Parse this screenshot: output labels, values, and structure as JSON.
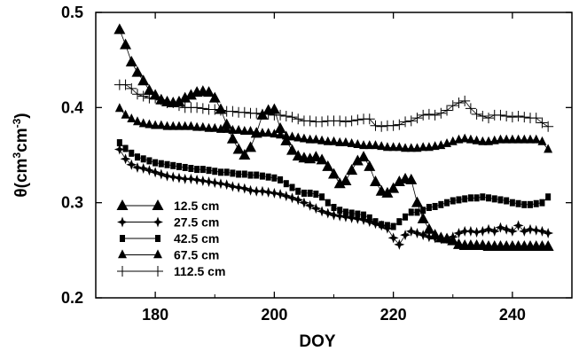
{
  "chart_data": {
    "type": "line",
    "xlabel": "DOY",
    "ylabel_main": "θ(cm",
    "ylabel_sup1": "3",
    "ylabel_mid": "cm",
    "ylabel_sup2": "-3",
    "ylabel_end": ")",
    "xlim": [
      170,
      250
    ],
    "ylim": [
      0.2,
      0.5
    ],
    "xticks": [
      180,
      200,
      220,
      240
    ],
    "xtick_labels": [
      "180",
      "200",
      "220",
      "240"
    ],
    "yticks": [
      0.2,
      0.3,
      0.4,
      0.5
    ],
    "ytick_labels": [
      "0.2",
      "0.3",
      "0.4",
      "0.5"
    ],
    "grid": false,
    "legend_position": "bottom-left",
    "series": [
      {
        "name": "12.5 cm",
        "marker": "triangle-filled",
        "x": [
          174,
          175,
          176,
          177,
          178,
          179,
          180,
          181,
          182,
          183,
          184,
          185,
          186,
          187,
          188,
          189,
          190,
          191,
          192,
          193,
          194,
          195,
          196,
          197,
          198,
          199,
          200,
          201,
          202,
          203,
          204,
          205,
          206,
          207,
          208,
          209,
          210,
          211,
          212,
          213,
          214,
          215,
          216,
          217,
          218,
          219,
          220,
          221,
          222,
          223,
          224,
          225,
          226,
          227,
          228,
          229,
          230,
          231,
          232,
          233,
          234,
          235,
          236,
          237,
          238,
          239,
          240,
          241,
          242,
          243,
          244,
          245,
          246
        ],
        "y": [
          0.482,
          0.466,
          0.448,
          0.437,
          0.428,
          0.418,
          0.413,
          0.408,
          0.406,
          0.405,
          0.406,
          0.41,
          0.413,
          0.416,
          0.417,
          0.416,
          0.41,
          0.398,
          0.382,
          0.367,
          0.356,
          0.35,
          0.358,
          0.373,
          0.392,
          0.397,
          0.398,
          0.378,
          0.365,
          0.355,
          0.349,
          0.347,
          0.346,
          0.348,
          0.345,
          0.338,
          0.33,
          0.32,
          0.323,
          0.334,
          0.344,
          0.348,
          0.338,
          0.322,
          0.312,
          0.31,
          0.315,
          0.322,
          0.325,
          0.324,
          0.3,
          0.283,
          0.272,
          0.266,
          0.263,
          0.262,
          0.26,
          0.256,
          0.255,
          0.255,
          0.255,
          0.255,
          0.254,
          0.254,
          0.254,
          0.254,
          0.254,
          0.254,
          0.254,
          0.254,
          0.254,
          0.254,
          0.254
        ]
      },
      {
        "name": "27.5 cm",
        "marker": "star4",
        "x": [
          174,
          175,
          176,
          177,
          178,
          179,
          180,
          181,
          182,
          183,
          184,
          185,
          186,
          187,
          188,
          189,
          190,
          191,
          192,
          193,
          194,
          195,
          196,
          197,
          198,
          199,
          200,
          201,
          202,
          203,
          204,
          205,
          206,
          207,
          208,
          209,
          210,
          211,
          212,
          213,
          214,
          215,
          216,
          217,
          218,
          219,
          220,
          221,
          222,
          223,
          224,
          225,
          226,
          227,
          228,
          229,
          230,
          231,
          232,
          233,
          234,
          235,
          236,
          237,
          238,
          239,
          240,
          241,
          242,
          243,
          244,
          245,
          246
        ],
        "y": [
          0.356,
          0.346,
          0.34,
          0.337,
          0.336,
          0.334,
          0.332,
          0.33,
          0.328,
          0.327,
          0.326,
          0.325,
          0.325,
          0.324,
          0.323,
          0.322,
          0.321,
          0.32,
          0.319,
          0.317,
          0.316,
          0.315,
          0.313,
          0.312,
          0.312,
          0.311,
          0.31,
          0.309,
          0.307,
          0.305,
          0.303,
          0.3,
          0.297,
          0.294,
          0.291,
          0.289,
          0.287,
          0.286,
          0.285,
          0.284,
          0.283,
          0.282,
          0.28,
          0.278,
          0.276,
          0.273,
          0.263,
          0.256,
          0.266,
          0.27,
          0.268,
          0.266,
          0.264,
          0.263,
          0.262,
          0.262,
          0.264,
          0.268,
          0.27,
          0.27,
          0.269,
          0.27,
          0.272,
          0.27,
          0.274,
          0.272,
          0.27,
          0.276,
          0.27,
          0.272,
          0.271,
          0.27,
          0.268
        ]
      },
      {
        "name": "42.5 cm",
        "marker": "square-filled",
        "x": [
          174,
          175,
          176,
          177,
          178,
          179,
          180,
          181,
          182,
          183,
          184,
          185,
          186,
          187,
          188,
          189,
          190,
          191,
          192,
          193,
          194,
          195,
          196,
          197,
          198,
          199,
          200,
          201,
          202,
          203,
          204,
          205,
          206,
          207,
          208,
          209,
          210,
          211,
          212,
          213,
          214,
          215,
          216,
          217,
          218,
          219,
          220,
          221,
          222,
          223,
          224,
          225,
          226,
          227,
          228,
          229,
          230,
          231,
          232,
          233,
          234,
          235,
          236,
          237,
          238,
          239,
          240,
          241,
          242,
          243,
          244,
          245,
          246
        ],
        "y": [
          0.363,
          0.357,
          0.352,
          0.348,
          0.346,
          0.344,
          0.342,
          0.341,
          0.34,
          0.339,
          0.338,
          0.337,
          0.336,
          0.335,
          0.335,
          0.334,
          0.333,
          0.332,
          0.332,
          0.331,
          0.33,
          0.33,
          0.329,
          0.329,
          0.328,
          0.327,
          0.326,
          0.324,
          0.32,
          0.316,
          0.312,
          0.31,
          0.31,
          0.309,
          0.306,
          0.3,
          0.295,
          0.292,
          0.29,
          0.289,
          0.288,
          0.287,
          0.284,
          0.28,
          0.277,
          0.276,
          0.275,
          0.28,
          0.285,
          0.29,
          0.29,
          0.292,
          0.295,
          0.296,
          0.298,
          0.3,
          0.302,
          0.303,
          0.304,
          0.305,
          0.305,
          0.306,
          0.305,
          0.304,
          0.303,
          0.302,
          0.3,
          0.299,
          0.298,
          0.298,
          0.299,
          0.3,
          0.306
        ]
      },
      {
        "name": "67.5 cm",
        "marker": "triangle-open",
        "x": [
          174,
          175,
          176,
          177,
          178,
          179,
          180,
          181,
          182,
          183,
          184,
          185,
          186,
          187,
          188,
          189,
          190,
          191,
          192,
          193,
          194,
          195,
          196,
          197,
          198,
          199,
          200,
          201,
          202,
          203,
          204,
          205,
          206,
          207,
          208,
          209,
          210,
          211,
          212,
          213,
          214,
          215,
          216,
          217,
          218,
          219,
          220,
          221,
          222,
          223,
          224,
          225,
          226,
          227,
          228,
          229,
          230,
          231,
          232,
          233,
          234,
          235,
          236,
          237,
          238,
          239,
          240,
          241,
          242,
          243,
          244,
          245,
          246
        ],
        "y": [
          0.399,
          0.392,
          0.388,
          0.385,
          0.383,
          0.382,
          0.381,
          0.381,
          0.38,
          0.38,
          0.38,
          0.38,
          0.38,
          0.379,
          0.379,
          0.378,
          0.378,
          0.377,
          0.377,
          0.376,
          0.376,
          0.375,
          0.375,
          0.374,
          0.373,
          0.373,
          0.372,
          0.371,
          0.37,
          0.369,
          0.368,
          0.367,
          0.366,
          0.366,
          0.365,
          0.364,
          0.364,
          0.363,
          0.363,
          0.362,
          0.361,
          0.36,
          0.36,
          0.36,
          0.359,
          0.358,
          0.358,
          0.358,
          0.357,
          0.357,
          0.357,
          0.358,
          0.358,
          0.359,
          0.36,
          0.362,
          0.364,
          0.366,
          0.367,
          0.366,
          0.365,
          0.364,
          0.364,
          0.365,
          0.366,
          0.366,
          0.366,
          0.366,
          0.366,
          0.366,
          0.366,
          0.364,
          0.356
        ]
      },
      {
        "name": "112.5 cm",
        "marker": "plus",
        "x": [
          174,
          175,
          176,
          177,
          178,
          179,
          180,
          181,
          182,
          183,
          184,
          185,
          186,
          187,
          188,
          189,
          190,
          191,
          192,
          193,
          194,
          195,
          196,
          197,
          198,
          199,
          200,
          201,
          202,
          203,
          204,
          205,
          206,
          207,
          208,
          209,
          210,
          211,
          212,
          213,
          214,
          215,
          216,
          217,
          218,
          219,
          220,
          221,
          222,
          223,
          224,
          225,
          226,
          227,
          228,
          229,
          230,
          231,
          232,
          233,
          234,
          235,
          236,
          237,
          238,
          239,
          240,
          241,
          242,
          243,
          244,
          245,
          246
        ],
        "y": [
          0.424,
          0.424,
          0.42,
          0.414,
          0.412,
          0.41,
          0.41,
          0.408,
          0.405,
          0.405,
          0.402,
          0.4,
          0.4,
          0.4,
          0.399,
          0.398,
          0.398,
          0.397,
          0.396,
          0.396,
          0.395,
          0.395,
          0.394,
          0.394,
          0.393,
          0.393,
          0.392,
          0.392,
          0.391,
          0.39,
          0.388,
          0.386,
          0.386,
          0.385,
          0.385,
          0.386,
          0.386,
          0.386,
          0.385,
          0.386,
          0.387,
          0.388,
          0.388,
          0.381,
          0.38,
          0.381,
          0.381,
          0.382,
          0.385,
          0.386,
          0.389,
          0.392,
          0.393,
          0.392,
          0.394,
          0.397,
          0.402,
          0.405,
          0.407,
          0.399,
          0.393,
          0.391,
          0.389,
          0.392,
          0.392,
          0.391,
          0.39,
          0.391,
          0.39,
          0.389,
          0.389,
          0.384,
          0.38
        ]
      }
    ]
  }
}
